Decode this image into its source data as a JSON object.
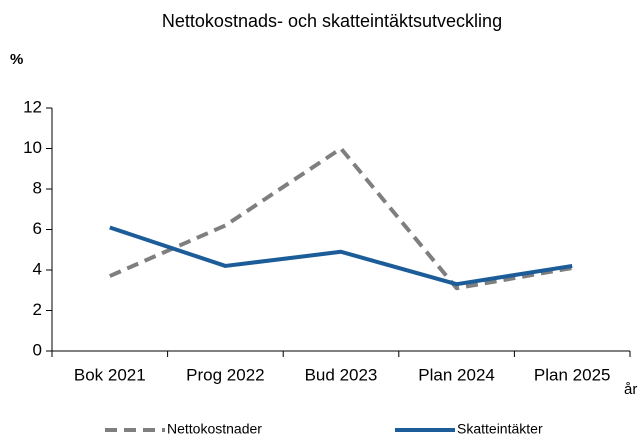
{
  "chart_data": {
    "type": "line",
    "title": "Nettokostnads- och skatteintäktsutveckling",
    "y_label": "%",
    "x_label": "år",
    "categories": [
      "Bok 2021",
      "Prog 2022",
      "Bud 2023",
      "Plan 2024",
      "Plan 2025"
    ],
    "series": [
      {
        "name": "Nettokostnader",
        "color": "#7f7f7f",
        "dashed": true,
        "values": [
          3.7,
          6.2,
          10.0,
          3.1,
          4.1
        ]
      },
      {
        "name": "Skatteintäkter",
        "color": "#1c5d99",
        "dashed": false,
        "values": [
          6.1,
          4.2,
          4.9,
          3.3,
          4.2
        ]
      }
    ],
    "ylim": [
      0,
      12
    ],
    "yticks": [
      0,
      2,
      4,
      6,
      8,
      10,
      12
    ],
    "grid": false,
    "legend": "bottom"
  }
}
